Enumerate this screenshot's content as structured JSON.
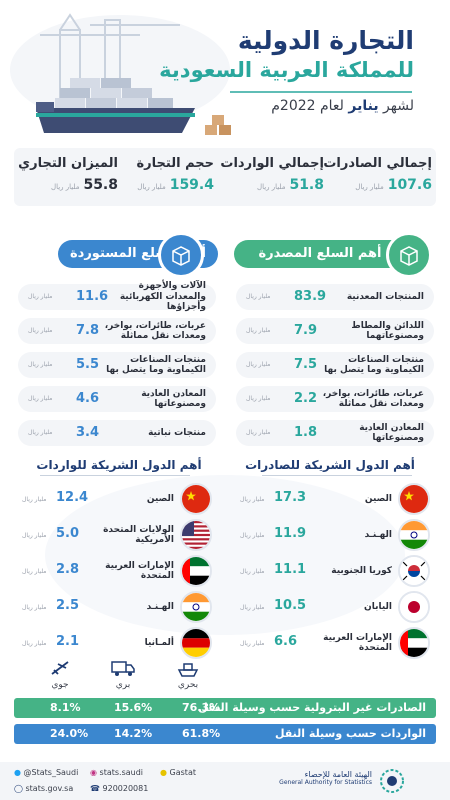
{
  "header": {
    "title_line1": "التجارة الدولية",
    "title_line2": "للمملكة العربية السعودية",
    "subtitle_prefix": "لشهر ",
    "subtitle_month": "يناير",
    "subtitle_suffix": " لعام 2022م"
  },
  "kpis": {
    "unit": "مليار ريال",
    "exports": {
      "label": "إجمالي الصادرات",
      "value": "107.6"
    },
    "imports": {
      "label": "إجمالي الواردات",
      "value": "51.8"
    },
    "volume": {
      "label": "حجم التجارة",
      "value": "159.4"
    },
    "balance": {
      "label": "الميزان التجاري",
      "value": "55.8"
    }
  },
  "exported_goods": {
    "title": "أهم السلع المصدرة",
    "unit": "مليار ريال",
    "items": [
      {
        "name": "المنتجات المعدنية",
        "value": "83.9"
      },
      {
        "name": "اللدائن والمطاط ومصنوعاتهما",
        "value": "7.9"
      },
      {
        "name": "منتجات الصناعات الكيماوية وما يتصل بها",
        "value": "7.5"
      },
      {
        "name": "عربات، طائرات، بواخر، ومعدات نقل مماثلة",
        "value": "2.2"
      },
      {
        "name": "المعادن العادية ومصنوعاتها",
        "value": "1.8"
      }
    ]
  },
  "imported_goods": {
    "title": "أهم السلع المستوردة",
    "unit": "مليار ريال",
    "items": [
      {
        "name": "الآلات والأجهزة والمعدات الكهربائية وأجزاؤها",
        "value": "11.6"
      },
      {
        "name": "عربات، طائرات، بواخر، ومعدات نقل مماثلة",
        "value": "7.8"
      },
      {
        "name": "منتجات الصناعات الكيماوية وما يتصل بها",
        "value": "5.5"
      },
      {
        "name": "المعادن العادية ومصنوعاتها",
        "value": "4.6"
      },
      {
        "name": "منتجات نباتية",
        "value": "3.4"
      }
    ]
  },
  "export_partners": {
    "title": "أهم الدول الشريكة للصادرات",
    "unit": "مليار ريال",
    "items": [
      {
        "name": "الصين",
        "value": "17.3",
        "flag": "china"
      },
      {
        "name": "الهـنـد",
        "value": "11.9",
        "flag": "india"
      },
      {
        "name": "كوريا الجنوبية",
        "value": "11.1",
        "flag": "korea"
      },
      {
        "name": "اليابان",
        "value": "10.5",
        "flag": "japan"
      },
      {
        "name": "الإمارات العربية المتحدة",
        "value": "6.6",
        "flag": "uae"
      }
    ]
  },
  "import_partners": {
    "title": "أهم الدول الشريكة للواردات",
    "unit": "مليار ريال",
    "items": [
      {
        "name": "الصين",
        "value": "12.4",
        "flag": "china"
      },
      {
        "name": "الولايات المتحدة الأمريكية",
        "value": "5.0",
        "flag": "usa"
      },
      {
        "name": "الإمارات العربية المتحدة",
        "value": "2.8",
        "flag": "uae"
      },
      {
        "name": "الهـنـد",
        "value": "2.5",
        "flag": "india"
      },
      {
        "name": "ألمـانيا",
        "value": "2.1",
        "flag": "germany"
      }
    ]
  },
  "transport": {
    "modes": {
      "sea": "بحري",
      "land": "بري",
      "air": "جوي"
    },
    "non_oil_exports": {
      "label": "الصادرات غير البترولية حسب وسيلة النقل",
      "sea": "76.3%",
      "land": "15.6%",
      "air": "8.1%"
    },
    "imports": {
      "label": "الواردات حسب وسيلة النقل",
      "sea": "61.8%",
      "land": "14.2%",
      "air": "24.0%"
    }
  },
  "footer": {
    "twitter": "@Stats_Saudi",
    "instagram": "stats.saudi",
    "snapchat": "Gastat",
    "website": "stats.gov.sa",
    "phone": "920020081",
    "org_ar": "الهيئة العامة للإحصاء",
    "org_en": "General Authority for Statistics"
  },
  "colors": {
    "navy": "#1f3c73",
    "teal": "#2aa79d",
    "green": "#45b386",
    "blue": "#3b87cf",
    "export_value": "#2aa79d",
    "import_value": "#3b87cf",
    "bar_green": "#45b386",
    "bar_blue": "#3b87cf"
  }
}
